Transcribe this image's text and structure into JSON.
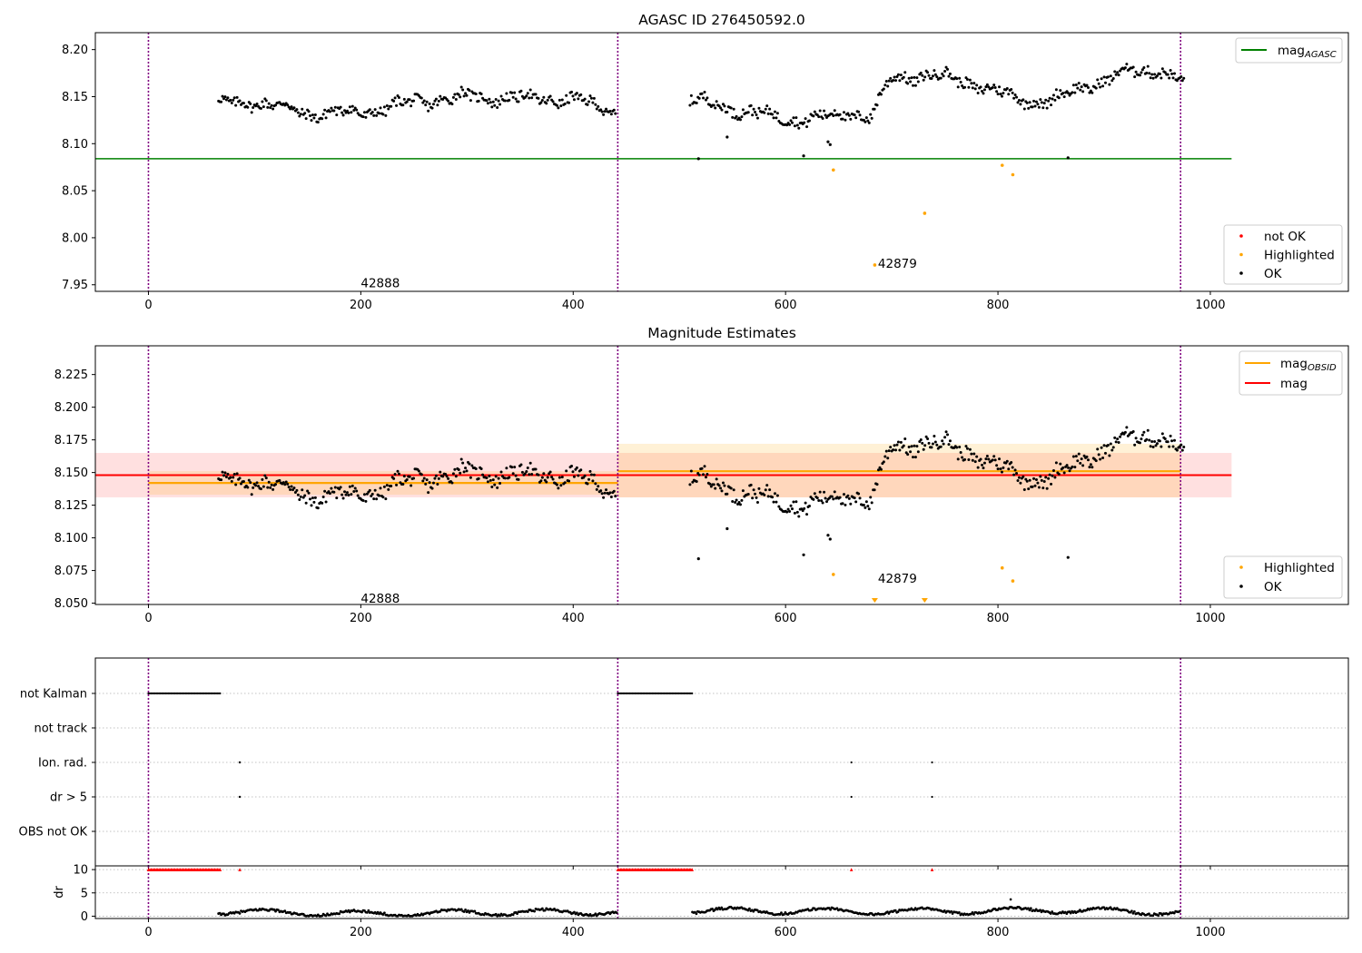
{
  "chart_data": [
    {
      "type": "scatter",
      "title": "AGASC ID 276450592.0",
      "xlim": [
        -50,
        1130
      ],
      "ylim": [
        7.943,
        8.218
      ],
      "xticks": [
        0,
        200,
        400,
        600,
        800,
        1000
      ],
      "yticks": [
        7.95,
        8.0,
        8.05,
        8.1,
        8.15,
        8.2
      ],
      "grid": false,
      "legend_lines": {
        "placement": "top-right",
        "entries": [
          {
            "main": "mag",
            "sub": "AGASC",
            "color": "#008000"
          }
        ]
      },
      "legend_points": {
        "placement": "bottom-right",
        "entries": [
          {
            "label": "not OK",
            "color": "#ff0000"
          },
          {
            "label": "Highlighted",
            "color": "#ffa500"
          },
          {
            "label": "OK",
            "color": "#000000"
          }
        ]
      },
      "mag_agasc": {
        "value": 8.084,
        "xrange": [
          -50,
          1020
        ]
      },
      "obs_boundaries": [
        0,
        442,
        972
      ],
      "annotations": [
        {
          "text": "42888",
          "x": 200,
          "y": 7.952
        },
        {
          "text": "42879",
          "x": 687,
          "y": 7.973
        }
      ],
      "highlighted_points": [
        {
          "x": 645,
          "y": 8.072
        },
        {
          "x": 684,
          "y": 7.971
        },
        {
          "x": 731,
          "y": 8.026
        },
        {
          "x": 804,
          "y": 8.077
        },
        {
          "x": 814,
          "y": 8.067
        }
      ],
      "ok_outliers": [
        {
          "x": 518,
          "y": 8.084
        },
        {
          "x": 545,
          "y": 8.107
        },
        {
          "x": 617,
          "y": 8.087
        },
        {
          "x": 640,
          "y": 8.102
        },
        {
          "x": 642,
          "y": 8.099
        },
        {
          "x": 866,
          "y": 8.085
        }
      ],
      "series_envelope": [
        {
          "x": [
            66,
            100,
            150,
            200,
            250,
            300,
            350,
            400,
            440
          ],
          "y": [
            8.142,
            8.145,
            8.132,
            8.133,
            8.144,
            8.15,
            8.148,
            8.147,
            8.134
          ]
        },
        {
          "x": [
            510,
            540,
            580,
            620,
            660,
            680,
            700,
            740,
            780,
            820,
            850,
            880,
            920,
            950,
            975
          ],
          "y": [
            8.147,
            8.14,
            8.13,
            8.125,
            8.133,
            8.128,
            8.17,
            8.173,
            8.163,
            8.147,
            8.145,
            8.16,
            8.175,
            8.18,
            8.164
          ]
        }
      ]
    },
    {
      "type": "scatter",
      "title": "Magnitude Estimates",
      "xlim": [
        -50,
        1130
      ],
      "ylim": [
        8.049,
        8.247
      ],
      "xticks": [
        0,
        200,
        400,
        600,
        800,
        1000
      ],
      "yticks": [
        8.05,
        8.075,
        8.1,
        8.125,
        8.15,
        8.175,
        8.2,
        8.225
      ],
      "grid": false,
      "legend_lines": {
        "placement": "top-right",
        "entries": [
          {
            "main": "mag",
            "sub": "OBSID",
            "color": "#ffa500"
          },
          {
            "main": "mag",
            "sub": "",
            "color": "#ff0000"
          }
        ]
      },
      "legend_points": {
        "placement": "bottom-right",
        "entries": [
          {
            "label": "Highlighted",
            "color": "#ffa500"
          },
          {
            "label": "OK",
            "color": "#000000"
          }
        ]
      },
      "mag": {
        "value": 8.148,
        "band": [
          8.131,
          8.165
        ],
        "xrange": [
          -50,
          1020
        ]
      },
      "mag_obsid": [
        {
          "x": [
            0,
            442
          ],
          "value": 8.142,
          "band": [
            8.133,
            8.151
          ]
        },
        {
          "x": [
            442,
            972
          ],
          "value": 8.151,
          "band": [
            8.131,
            8.172
          ]
        }
      ],
      "obs_boundaries": [
        0,
        442,
        972
      ],
      "annotations": [
        {
          "text": "42888",
          "x": 200,
          "y": 8.054
        },
        {
          "text": "42879",
          "x": 687,
          "y": 8.069
        }
      ],
      "highlighted_points": [
        {
          "x": 645,
          "y": 8.072
        },
        {
          "x": 804,
          "y": 8.077
        },
        {
          "x": 814,
          "y": 8.067
        }
      ],
      "below_range_markers": [
        {
          "x": 684
        },
        {
          "x": 731
        }
      ],
      "ok_outliers": [
        {
          "x": 518,
          "y": 8.084
        },
        {
          "x": 545,
          "y": 8.107
        },
        {
          "x": 617,
          "y": 8.087
        },
        {
          "x": 640,
          "y": 8.102
        },
        {
          "x": 642,
          "y": 8.099
        },
        {
          "x": 866,
          "y": 8.085
        }
      ],
      "series_envelope": [
        {
          "x": [
            66,
            100,
            150,
            200,
            250,
            300,
            350,
            400,
            440
          ],
          "y": [
            8.142,
            8.145,
            8.132,
            8.133,
            8.144,
            8.15,
            8.148,
            8.147,
            8.134
          ]
        },
        {
          "x": [
            510,
            540,
            580,
            620,
            660,
            680,
            700,
            740,
            780,
            820,
            850,
            880,
            920,
            950,
            975
          ],
          "y": [
            8.147,
            8.14,
            8.13,
            8.125,
            8.133,
            8.128,
            8.17,
            8.173,
            8.163,
            8.147,
            8.145,
            8.16,
            8.175,
            8.18,
            8.164
          ]
        }
      ]
    },
    {
      "type": "scatter",
      "title": "",
      "xlim": [
        -50,
        1130
      ],
      "xticks": [
        0,
        200,
        400,
        600,
        800,
        1000
      ],
      "flag_rows": [
        "not Kalman",
        "not track",
        "Ion. rad.",
        "dr > 5",
        "OBS not OK"
      ],
      "flags": {
        "not Kalman": [
          {
            "x": [
              0,
              68
            ]
          },
          {
            "x": [
              442,
              512
            ]
          }
        ],
        "not track": [],
        "Ion. rad.": [
          {
            "x": [
              86
            ]
          },
          {
            "x": [
              662,
              738
            ]
          }
        ],
        "dr > 5": [
          {
            "x": [
              86
            ]
          },
          {
            "x": [
              662,
              738
            ]
          }
        ],
        "OBS not OK": []
      },
      "obs_boundaries": [
        0,
        442,
        972
      ]
    },
    {
      "type": "scatter",
      "title": "",
      "ylabel": "dr",
      "xlim": [
        -50,
        1130
      ],
      "ylim": [
        -0.5,
        10.8
      ],
      "xticks": [
        0,
        200,
        400,
        600,
        800,
        1000
      ],
      "xticklabels": [
        "0",
        "200",
        "400",
        "600",
        "800",
        "1000"
      ],
      "yticks": [
        0,
        5,
        10
      ],
      "clipped_points": [
        {
          "x": [
            0,
            68
          ],
          "y": 10
        },
        {
          "x": [
            442,
            512
          ],
          "y": 10
        },
        {
          "x": [
            86
          ],
          "y": 10
        },
        {
          "x": [
            662
          ],
          "y": 10
        },
        {
          "x": [
            738
          ],
          "y": 10
        }
      ],
      "dr_envelope": {
        "x": [
          66,
          200,
          300,
          440,
          520,
          700,
          860,
          972
        ],
        "y": [
          1.0,
          0.5,
          0.8,
          0.9,
          1.2,
          1.0,
          1.3,
          0.8
        ]
      },
      "dr_outliers": [
        {
          "x": 812,
          "y": 3.6
        }
      ],
      "obs_boundaries": [
        0,
        442,
        972
      ]
    }
  ]
}
